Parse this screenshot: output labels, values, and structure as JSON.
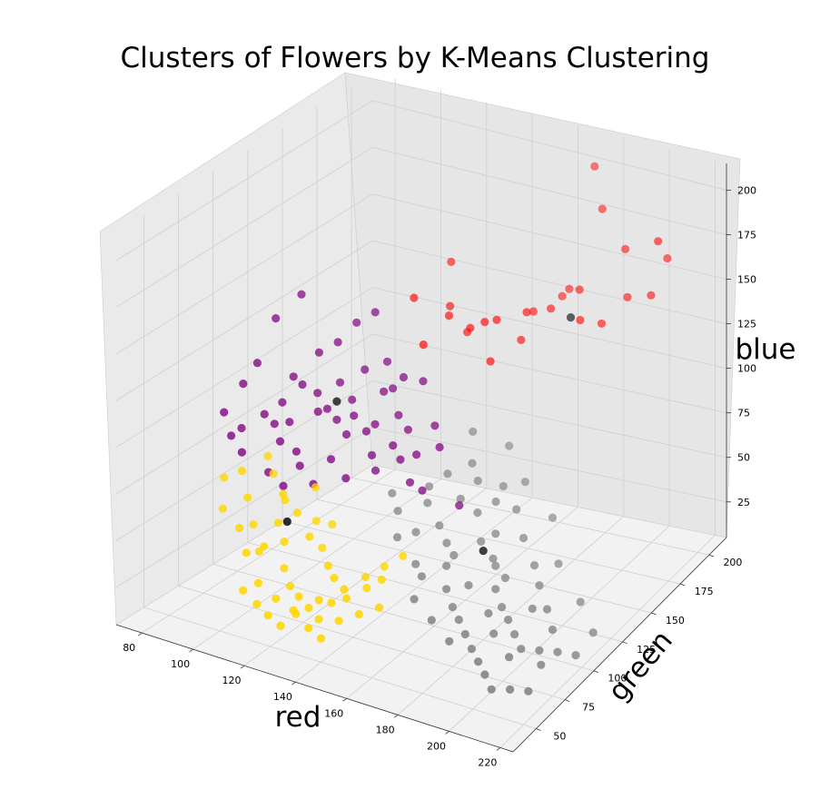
{
  "chart_data": {
    "type": "scatter",
    "projection": "3d",
    "title": "Clusters of Flowers by K-Means Clustering",
    "xlabel": "red",
    "ylabel": "green",
    "zlabel": "blue",
    "xlim": [
      70,
      225
    ],
    "ylim": [
      30,
      215
    ],
    "zlim": [
      5,
      215
    ],
    "xticks": [
      80,
      100,
      120,
      140,
      160,
      180,
      200,
      220
    ],
    "yticks": [
      50,
      75,
      100,
      125,
      150,
      175,
      200
    ],
    "zticks": [
      25,
      50,
      75,
      100,
      125,
      150,
      175,
      200
    ],
    "grid": true,
    "legend": "none",
    "series": [
      {
        "color": "#ff0000",
        "points": [
          [
            218,
            170,
            198
          ],
          [
            214,
            172,
            165
          ],
          [
            216,
            182,
            180
          ],
          [
            200,
            178,
            182
          ],
          [
            205,
            170,
            162
          ],
          [
            185,
            188,
            193
          ],
          [
            178,
            195,
            210
          ],
          [
            175,
            165,
            148
          ],
          [
            190,
            160,
            150
          ],
          [
            195,
            168,
            145
          ],
          [
            170,
            155,
            150
          ],
          [
            165,
            170,
            140
          ],
          [
            160,
            150,
            145
          ],
          [
            155,
            150,
            142
          ],
          [
            160,
            145,
            125
          ],
          [
            150,
            148,
            138
          ],
          [
            145,
            155,
            130
          ],
          [
            140,
            150,
            140
          ],
          [
            130,
            170,
            155
          ],
          [
            128,
            145,
            148
          ],
          [
            140,
            130,
            135
          ],
          [
            175,
            180,
            150
          ],
          [
            182,
            175,
            155
          ],
          [
            172,
            180,
            145
          ],
          [
            165,
            160,
            130
          ],
          [
            135,
            160,
            138
          ]
        ]
      },
      {
        "color": "#800080",
        "points": [
          [
            95,
            120,
            150
          ],
          [
            90,
            110,
            140
          ],
          [
            88,
            100,
            120
          ],
          [
            85,
            95,
            110
          ],
          [
            80,
            90,
            95
          ],
          [
            100,
            105,
            115
          ],
          [
            105,
            115,
            125
          ],
          [
            110,
            120,
            130
          ],
          [
            115,
            125,
            140
          ],
          [
            120,
            130,
            145
          ],
          [
            125,
            130,
            120
          ],
          [
            130,
            125,
            110
          ],
          [
            135,
            120,
            100
          ],
          [
            140,
            118,
            95
          ],
          [
            145,
            115,
            85
          ],
          [
            150,
            110,
            70
          ],
          [
            160,
            120,
            60
          ],
          [
            110,
            105,
            100
          ],
          [
            115,
            110,
            95
          ],
          [
            120,
            108,
            90
          ],
          [
            100,
            95,
            85
          ],
          [
            95,
            100,
            90
          ],
          [
            105,
            98,
            80
          ],
          [
            90,
            85,
            80
          ],
          [
            98,
            90,
            70
          ],
          [
            108,
            95,
            75
          ],
          [
            118,
            100,
            80
          ],
          [
            122,
            110,
            100
          ],
          [
            128,
            115,
            95
          ],
          [
            132,
            105,
            85
          ],
          [
            138,
            110,
            90
          ],
          [
            112,
            118,
            110
          ],
          [
            106,
            112,
            105
          ],
          [
            102,
            108,
            110
          ],
          [
            96,
            104,
            100
          ],
          [
            92,
            98,
            95
          ],
          [
            86,
            92,
            88
          ],
          [
            84,
            88,
            85
          ],
          [
            104,
            90,
            65
          ],
          [
            114,
            94,
            68
          ],
          [
            124,
            100,
            72
          ],
          [
            134,
            104,
            78
          ],
          [
            126,
            112,
            92
          ],
          [
            118,
            116,
            104
          ],
          [
            110,
            112,
            98
          ],
          [
            100,
            102,
            92
          ],
          [
            140,
            112,
            82
          ],
          [
            146,
            108,
            74
          ],
          [
            154,
            116,
            92
          ],
          [
            150,
            120,
            100
          ],
          [
            130,
            118,
            112
          ],
          [
            136,
            122,
            120
          ],
          [
            142,
            126,
            118
          ],
          [
            120,
            122,
            118
          ]
        ]
      },
      {
        "color": "#ffd700",
        "points": [
          [
            80,
            90,
            60
          ],
          [
            85,
            80,
            50
          ],
          [
            90,
            85,
            70
          ],
          [
            95,
            80,
            60
          ],
          [
            100,
            75,
            50
          ],
          [
            105,
            70,
            40
          ],
          [
            110,
            75,
            55
          ],
          [
            115,
            80,
            60
          ],
          [
            120,
            85,
            55
          ],
          [
            125,
            80,
            45
          ],
          [
            130,
            75,
            40
          ],
          [
            135,
            70,
            38
          ],
          [
            140,
            68,
            35
          ],
          [
            145,
            75,
            40
          ],
          [
            150,
            80,
            45
          ],
          [
            155,
            85,
            50
          ],
          [
            100,
            90,
            70
          ],
          [
            95,
            95,
            75
          ],
          [
            105,
            88,
            62
          ],
          [
            115,
            70,
            35
          ],
          [
            120,
            65,
            30
          ],
          [
            125,
            62,
            28
          ],
          [
            130,
            60,
            25
          ],
          [
            135,
            58,
            22
          ],
          [
            110,
            60,
            30
          ],
          [
            105,
            58,
            25
          ],
          [
            112,
            55,
            22
          ],
          [
            118,
            52,
            20
          ],
          [
            124,
            50,
            18
          ],
          [
            128,
            54,
            24
          ],
          [
            132,
            64,
            28
          ],
          [
            138,
            62,
            30
          ],
          [
            142,
            66,
            32
          ],
          [
            148,
            70,
            38
          ],
          [
            152,
            74,
            42
          ],
          [
            108,
            68,
            45
          ],
          [
            114,
            72,
            48
          ],
          [
            122,
            76,
            52
          ],
          [
            128,
            82,
            58
          ],
          [
            96,
            72,
            48
          ],
          [
            102,
            66,
            40
          ],
          [
            118,
            58,
            26
          ],
          [
            126,
            56,
            24
          ],
          [
            134,
            52,
            20
          ],
          [
            140,
            50,
            18
          ],
          [
            116,
            92,
            68
          ],
          [
            108,
            84,
            62
          ],
          [
            144,
            56,
            26
          ],
          [
            150,
            60,
            30
          ],
          [
            156,
            64,
            34
          ]
        ]
      },
      {
        "color": "#808080",
        "points": [
          [
            150,
            150,
            80
          ],
          [
            155,
            140,
            70
          ],
          [
            160,
            135,
            65
          ],
          [
            170,
            130,
            60
          ],
          [
            175,
            120,
            50
          ],
          [
            180,
            110,
            40
          ],
          [
            185,
            100,
            35
          ],
          [
            190,
            95,
            30
          ],
          [
            195,
            90,
            28
          ],
          [
            200,
            85,
            25
          ],
          [
            205,
            80,
            22
          ],
          [
            210,
            85,
            20
          ],
          [
            215,
            90,
            18
          ],
          [
            220,
            95,
            15
          ],
          [
            165,
            125,
            55
          ],
          [
            170,
            118,
            45
          ],
          [
            178,
            112,
            42
          ],
          [
            186,
            106,
            38
          ],
          [
            160,
            110,
            45
          ],
          [
            165,
            100,
            40
          ],
          [
            170,
            90,
            35
          ],
          [
            175,
            85,
            30
          ],
          [
            180,
            80,
            28
          ],
          [
            185,
            75,
            25
          ],
          [
            190,
            70,
            22
          ],
          [
            195,
            65,
            20
          ],
          [
            200,
            60,
            18
          ],
          [
            205,
            55,
            15
          ],
          [
            210,
            60,
            14
          ],
          [
            215,
            65,
            12
          ],
          [
            155,
            95,
            40
          ],
          [
            160,
            90,
            38
          ],
          [
            150,
            105,
            50
          ],
          [
            145,
            100,
            48
          ],
          [
            140,
            110,
            55
          ],
          [
            135,
            115,
            60
          ],
          [
            145,
            125,
            62
          ],
          [
            150,
            130,
            68
          ],
          [
            158,
            125,
            60
          ],
          [
            168,
            140,
            62
          ],
          [
            176,
            135,
            55
          ],
          [
            184,
            125,
            48
          ],
          [
            192,
            118,
            40
          ],
          [
            198,
            110,
            36
          ],
          [
            206,
            100,
            32
          ],
          [
            212,
            92,
            28
          ],
          [
            188,
            88,
            30
          ],
          [
            176,
            96,
            36
          ],
          [
            166,
            104,
            44
          ],
          [
            156,
            112,
            52
          ],
          [
            148,
            118,
            58
          ],
          [
            162,
            80,
            32
          ],
          [
            172,
            74,
            28
          ],
          [
            182,
            68,
            24
          ],
          [
            194,
            80,
            26
          ],
          [
            204,
            72,
            22
          ],
          [
            214,
            78,
            18
          ],
          [
            220,
            110,
            18
          ],
          [
            210,
            120,
            25
          ],
          [
            196,
            130,
            35
          ],
          [
            186,
            145,
            48
          ],
          [
            172,
            150,
            60
          ],
          [
            160,
            160,
            70
          ],
          [
            200,
            100,
            30
          ]
        ]
      },
      {
        "color": "#000000",
        "points": [
          [
            186,
            160,
            150
          ],
          [
            115,
            110,
            105
          ],
          [
            112,
            78,
            55
          ],
          [
            176,
            108,
            48
          ]
        ]
      }
    ]
  }
}
